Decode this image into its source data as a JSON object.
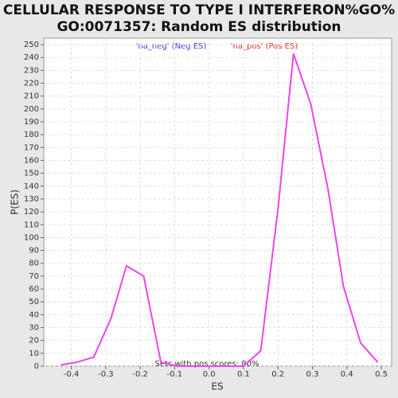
{
  "chart_data": {
    "type": "line",
    "title": "CELLULAR RESPONSE TO TYPE I INTERFERON%GO%",
    "subtitle": "GO:0071357: Random ES distribution",
    "xlabel": "ES",
    "ylabel": "P(ES)",
    "legend_neg": "'na_neg' (Neg ES)",
    "legend_pos": "'na_pos' (Pos ES)",
    "annotation": "Sets with pos scores: 80%",
    "x": [
      -0.43,
      -0.385,
      -0.335,
      -0.285,
      -0.24,
      -0.19,
      -0.14,
      -0.09,
      0.1,
      0.15,
      0.2,
      0.245,
      0.295,
      0.345,
      0.39,
      0.44,
      0.49
    ],
    "series": [
      {
        "name": "P(ES)",
        "color": "#ee44ee",
        "values": [
          1,
          3,
          7,
          37,
          78,
          70,
          3,
          0,
          0,
          12,
          122,
          243,
          204,
          138,
          62,
          18,
          3
        ]
      }
    ],
    "xlim": [
      -0.48,
      0.53
    ],
    "xticks": [
      -0.4,
      -0.3,
      -0.2,
      -0.1,
      {
        "value": 0,
        "label": "0.0"
      },
      0.1,
      0.2,
      0.3,
      0.4,
      0.5
    ],
    "ylim": [
      0,
      255
    ],
    "yticks": [
      0,
      10,
      20,
      30,
      40,
      50,
      60,
      70,
      80,
      90,
      100,
      110,
      120,
      130,
      140,
      150,
      160,
      170,
      180,
      190,
      200,
      210,
      220,
      230,
      240,
      250
    ],
    "grid": true
  }
}
